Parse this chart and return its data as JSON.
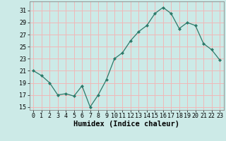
{
  "x": [
    0,
    1,
    2,
    3,
    4,
    5,
    6,
    7,
    8,
    9,
    10,
    11,
    12,
    13,
    14,
    15,
    16,
    17,
    18,
    19,
    20,
    21,
    22,
    23
  ],
  "y": [
    21,
    20.2,
    19,
    17,
    17.2,
    16.8,
    18.5,
    15,
    17,
    19.5,
    23,
    24,
    26,
    27.5,
    28.5,
    30.5,
    31.5,
    30.5,
    28,
    29,
    28.5,
    25.5,
    24.5,
    22.8
  ],
  "xlabel": "Humidex (Indice chaleur)",
  "xlim": [
    -0.5,
    23.5
  ],
  "ylim": [
    14.5,
    32.5
  ],
  "yticks": [
    15,
    17,
    19,
    21,
    23,
    25,
    27,
    29,
    31
  ],
  "xticks": [
    0,
    1,
    2,
    3,
    4,
    5,
    6,
    7,
    8,
    9,
    10,
    11,
    12,
    13,
    14,
    15,
    16,
    17,
    18,
    19,
    20,
    21,
    22,
    23
  ],
  "line_color": "#2d7a6a",
  "marker": "D",
  "marker_size": 2.0,
  "bg_color": "#cceae7",
  "grid_color": "#f0b8b8",
  "xlabel_fontsize": 7.5,
  "tick_fontsize": 6.0
}
